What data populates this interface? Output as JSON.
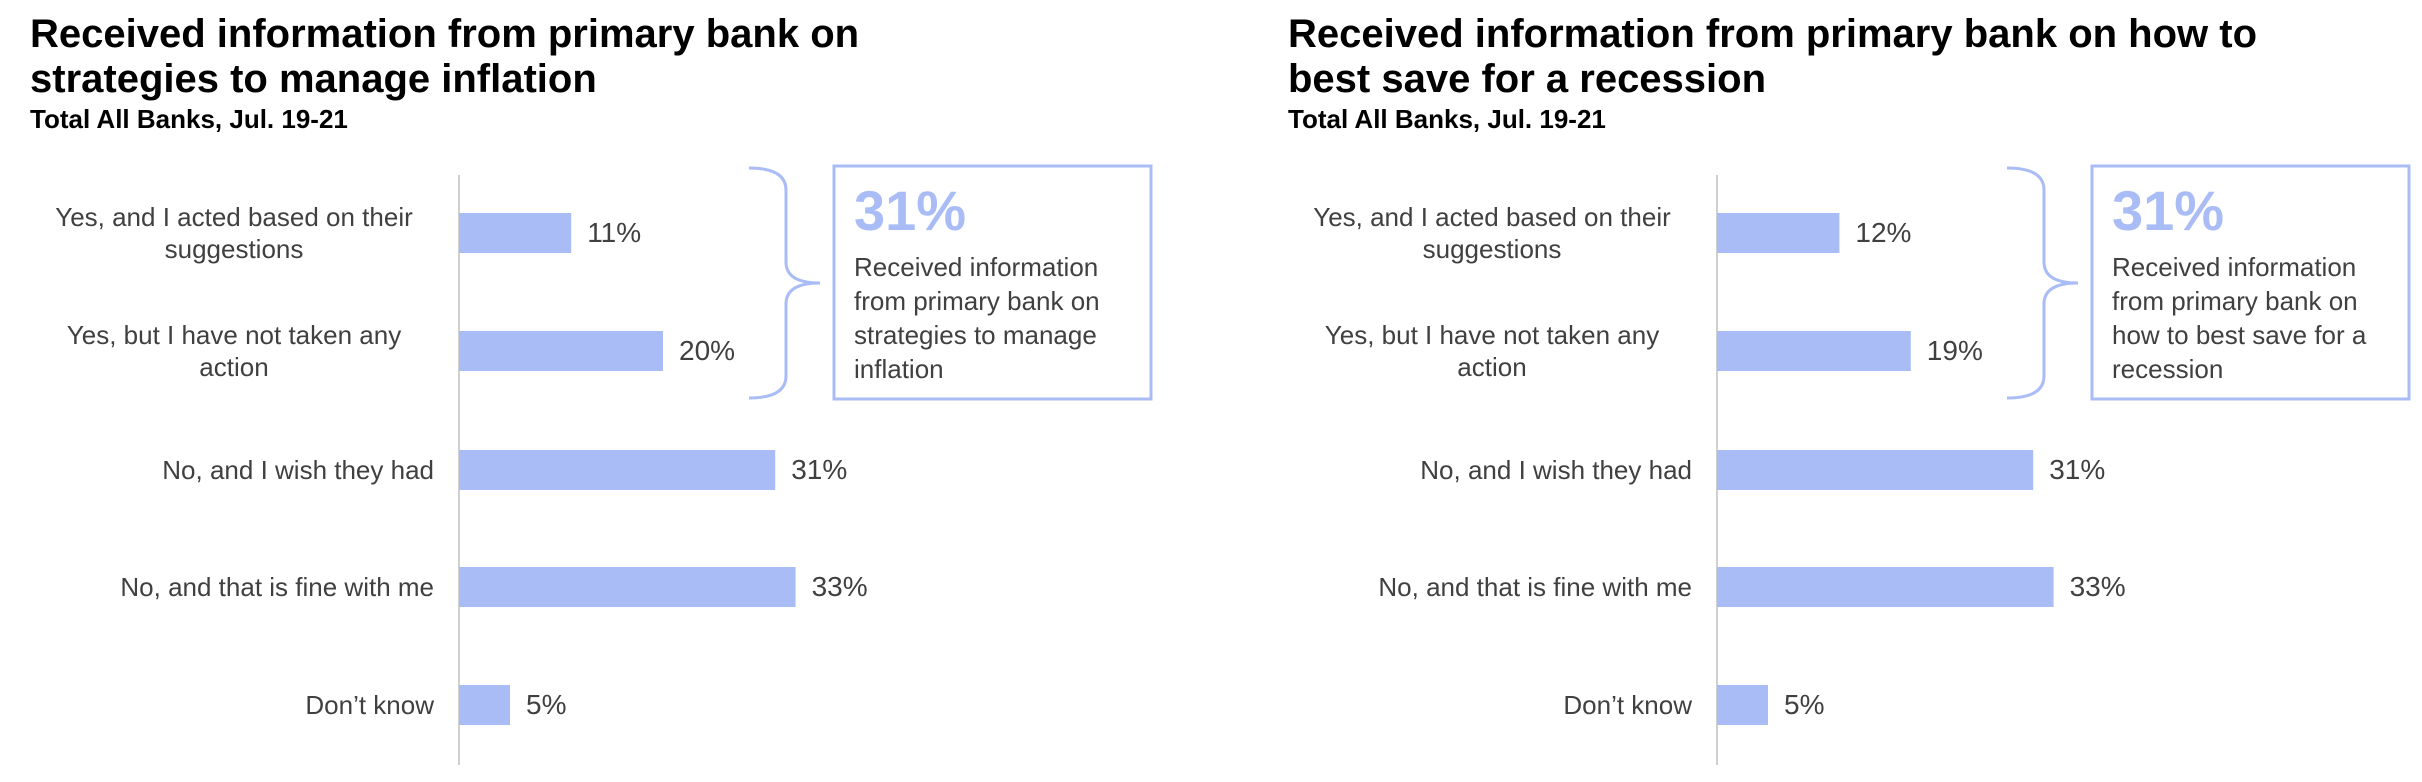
{
  "chart_data": [
    {
      "type": "bar",
      "orientation": "horizontal",
      "title": "Received information from primary bank on strategies to manage inflation",
      "subtitle": "Total All Banks, Jul. 19-21",
      "categories": [
        "Yes, and I acted based on their suggestions",
        "Yes, but I have not taken any action",
        "No, and I wish they had",
        "No, and that is fine with me",
        "Don’t know"
      ],
      "values": [
        11,
        20,
        31,
        33,
        5
      ],
      "value_labels": [
        "11%",
        "20%",
        "31%",
        "33%",
        "5%"
      ],
      "color": "#a9bcf5",
      "callout": {
        "label": "31%",
        "text": "Received information from primary bank on strategies to manage inflation"
      }
    },
    {
      "type": "bar",
      "orientation": "horizontal",
      "title": "Received information from primary bank on how to best save for a recession",
      "subtitle": "Total All Banks, Jul. 19-21",
      "categories": [
        "Yes, and I acted based on their suggestions",
        "Yes, but I have not taken any action",
        "No, and I wish they had",
        "No, and that is fine with me",
        "Don’t know"
      ],
      "values": [
        12,
        19,
        31,
        33,
        5
      ],
      "value_labels": [
        "12%",
        "19%",
        "31%",
        "33%",
        "5%"
      ],
      "color": "#a9bcf5",
      "callout": {
        "label": "31%",
        "text": "Received information from primary bank on how to best save for a recession"
      }
    }
  ]
}
